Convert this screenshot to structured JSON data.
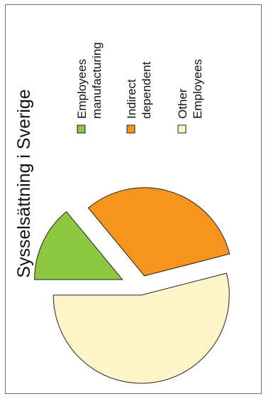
{
  "chart_data": {
    "type": "pie",
    "title": "Sysselsättning i Sverige",
    "legend_position": "right",
    "slices": [
      {
        "label_lines": [
          "Employees",
          "manufacturing"
        ],
        "value": 14,
        "color": "#8dc63f"
      },
      {
        "label_lines": [
          "Indirect",
          "dependent"
        ],
        "value": 32,
        "color": "#f7941d"
      },
      {
        "label_lines": [
          "Other",
          "Employees"
        ],
        "value": 54,
        "color": "#fcf5c7"
      }
    ]
  }
}
